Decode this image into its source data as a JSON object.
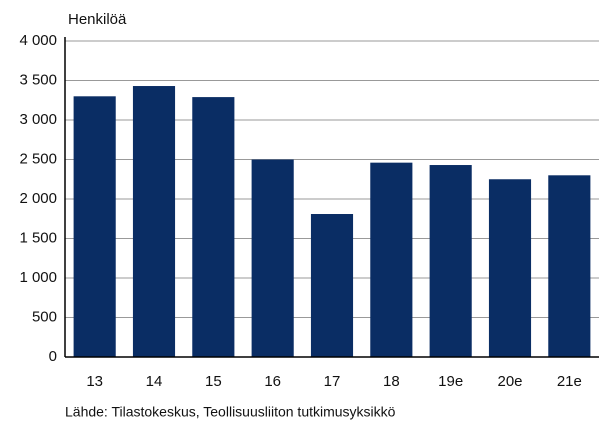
{
  "chart_data": {
    "type": "bar",
    "y_axis_label": "Henkilöä",
    "categories": [
      "13",
      "14",
      "15",
      "16",
      "17",
      "18",
      "19e",
      "20e",
      "21e"
    ],
    "values": [
      3300,
      3430,
      3290,
      2500,
      1810,
      2460,
      2430,
      2250,
      2300
    ],
    "color": "#0a2d64",
    "ylim": [
      0,
      4000
    ],
    "yticks": [
      0,
      500,
      {
        "value": 1000,
        "label": "1 000"
      },
      {
        "value": 1500,
        "label": "1 500"
      },
      {
        "value": 2000,
        "label": "2 000"
      },
      {
        "value": 2500,
        "label": "2 500"
      },
      {
        "value": 3000,
        "label": "3 000"
      },
      {
        "value": 3500,
        "label": "3 500"
      },
      {
        "value": 4000,
        "label": "4 000"
      }
    ],
    "grid": true,
    "source": "Lähde: Tilastokeskus, Teollisuusliiton tutkimusyksikkö"
  }
}
